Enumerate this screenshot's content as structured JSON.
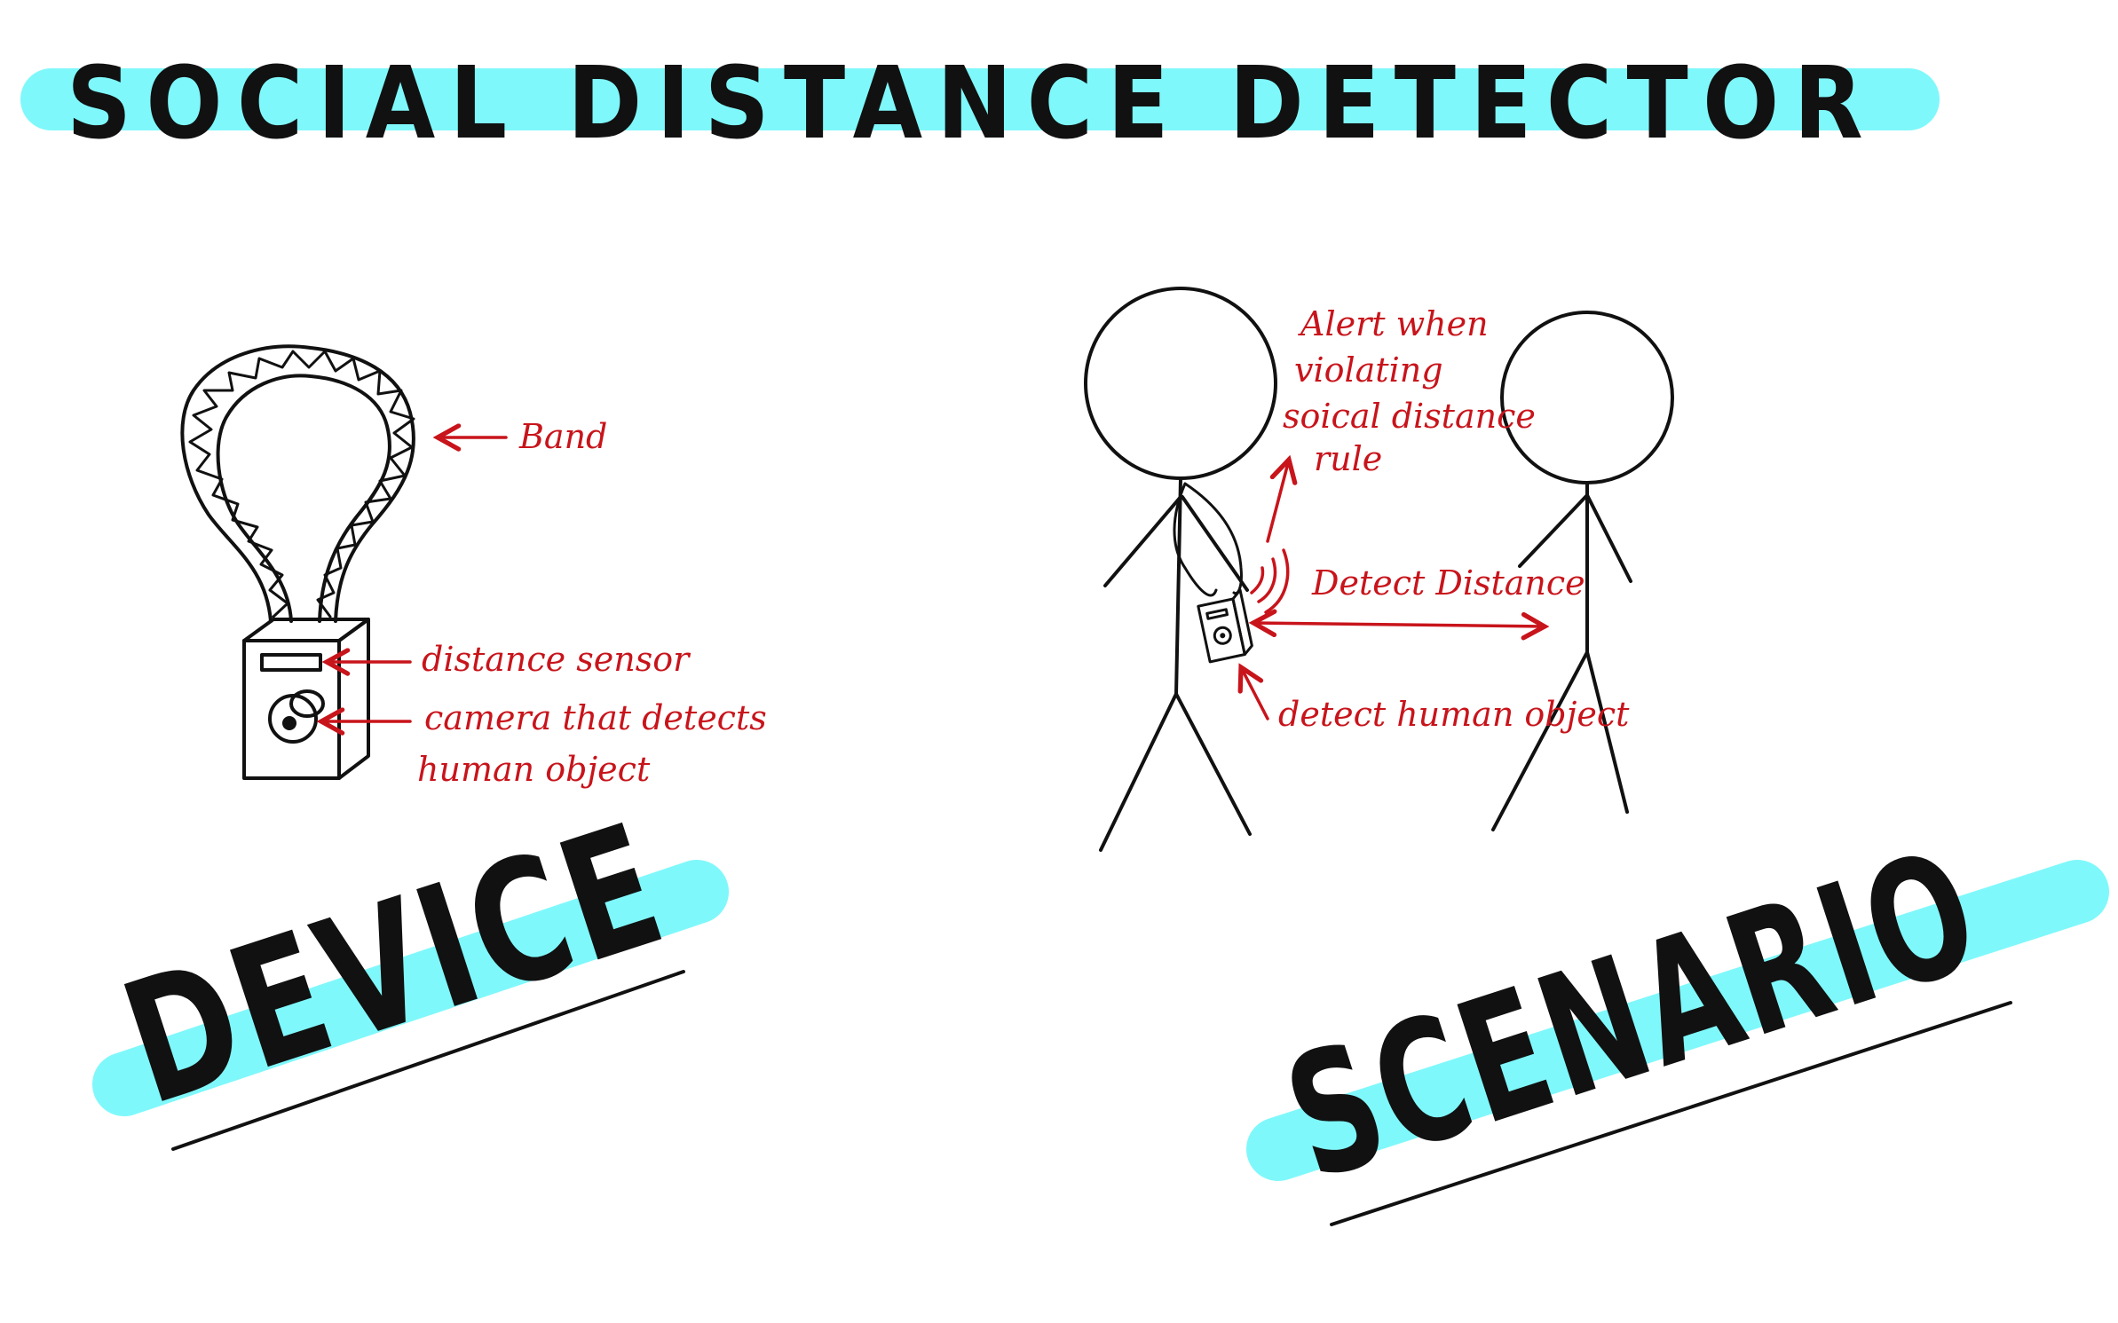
{
  "title": "SOCIAL DISTANCE DETECTOR",
  "sections": {
    "device": "DEVICE",
    "scenario": "SCENARIO"
  },
  "device_labels": {
    "band": "Band",
    "distance_sensor": "distance sensor",
    "camera_line1": "camera that detects",
    "camera_line2": "human object"
  },
  "scenario_labels": {
    "alert_line1": "Alert when",
    "alert_line2": "violating",
    "alert_line3": "soical distance",
    "alert_line4": "rule",
    "detect_distance": "Detect Distance",
    "detect_human": "detect human object"
  },
  "colors": {
    "highlight": "#7ff8fb",
    "annotation": "#c8141b",
    "ink": "#111111"
  }
}
